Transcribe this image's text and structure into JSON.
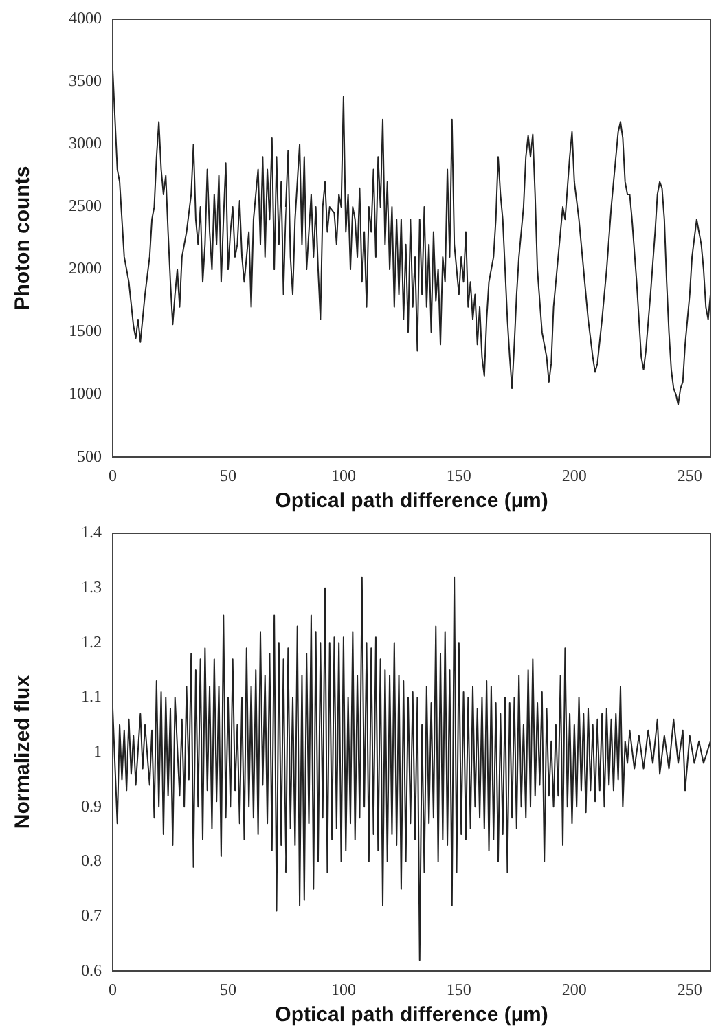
{
  "chart_data": [
    {
      "type": "line",
      "xlabel": "Optical path difference (µm)",
      "ylabel": "Photon counts",
      "xlim": [
        0,
        259
      ],
      "xticks": [
        0,
        50,
        100,
        150,
        200,
        250
      ],
      "ylim": [
        500,
        4000
      ],
      "yticks": [
        500,
        1000,
        1500,
        2000,
        2500,
        3000,
        3500,
        4000
      ],
      "marker": "none",
      "x": [
        0,
        2,
        3,
        4,
        5,
        7,
        9,
        10,
        11,
        12,
        14,
        16,
        17,
        18,
        19,
        20,
        21,
        22,
        23,
        24,
        25,
        26,
        27,
        28,
        29,
        30,
        32,
        34,
        35,
        36,
        37,
        38,
        39,
        40,
        41,
        42,
        43,
        44,
        45,
        46,
        47,
        48,
        49,
        50,
        51,
        52,
        53,
        54,
        55,
        56,
        57,
        59,
        60,
        61,
        63,
        64,
        65,
        66,
        67,
        68,
        69,
        70,
        71,
        72,
        73,
        74,
        75,
        76,
        77,
        78,
        79,
        80,
        81,
        82,
        83,
        84,
        85,
        86,
        87,
        88,
        89,
        90,
        91,
        92,
        93,
        94,
        96,
        97,
        98,
        99,
        100,
        101,
        102,
        103,
        104,
        105,
        106,
        107,
        108,
        109,
        110,
        111,
        112,
        113,
        114,
        115,
        116,
        117,
        118,
        119,
        120,
        121,
        122,
        123,
        124,
        125,
        126,
        127,
        128,
        129,
        130,
        131,
        132,
        133,
        134,
        135,
        136,
        137,
        138,
        139,
        140,
        141,
        142,
        143,
        144,
        145,
        146,
        147,
        148,
        149,
        150,
        151,
        152,
        153,
        154,
        155,
        156,
        157,
        158,
        159,
        160,
        161,
        162,
        163,
        165,
        166,
        167,
        168,
        169,
        170,
        171,
        172,
        173,
        174,
        175,
        176,
        178,
        179,
        180,
        181,
        182,
        183,
        184,
        186,
        188,
        189,
        190,
        191,
        193,
        195,
        196,
        198,
        199,
        200,
        201,
        202,
        204,
        206,
        208,
        209,
        210,
        212,
        214,
        216,
        217,
        218,
        219,
        220,
        221,
        222,
        223,
        224,
        225,
        227,
        228,
        229,
        230,
        231,
        233,
        235,
        236,
        237,
        238,
        239,
        240,
        241,
        242,
        243,
        244,
        245,
        246,
        247,
        248,
        250,
        251,
        252,
        253,
        254,
        255,
        256,
        257,
        258,
        259
      ],
      "series": [
        {
          "color": "#222222",
          "values": [
            3600,
            2800,
            2700,
            2400,
            2100,
            1900,
            1550,
            1450,
            1600,
            1420,
            1800,
            2100,
            2400,
            2500,
            2900,
            3180,
            2800,
            2600,
            2750,
            2300,
            1900,
            1560,
            1800,
            2000,
            1700,
            2100,
            2300,
            2600,
            3000,
            2400,
            2200,
            2500,
            1900,
            2200,
            2800,
            2300,
            2000,
            2600,
            2200,
            2750,
            1900,
            2400,
            2850,
            2000,
            2300,
            2500,
            2100,
            2200,
            2550,
            2100,
            1900,
            2300,
            1700,
            2400,
            2800,
            2200,
            2900,
            2100,
            2800,
            2400,
            3050,
            2000,
            2900,
            2200,
            2700,
            1800,
            2500,
            2950,
            2100,
            1800,
            2400,
            2700,
            3000,
            2200,
            2900,
            2000,
            2300,
            2600,
            2100,
            2500,
            2000,
            1600,
            2500,
            2700,
            2300,
            2500,
            2450,
            2200,
            2600,
            2500,
            3380,
            2300,
            2600,
            2000,
            2500,
            2400,
            2100,
            2650,
            1900,
            2300,
            1700,
            2500,
            2300,
            2800,
            2100,
            2900,
            2500,
            3200,
            2200,
            2700,
            2000,
            2500,
            1700,
            2400,
            1800,
            2400,
            1600,
            2200,
            1500,
            2400,
            1700,
            2100,
            1350,
            2400,
            1800,
            2500,
            1700,
            2200,
            1500,
            2300,
            1750,
            2000,
            1400,
            2100,
            1900,
            2800,
            2100,
            3200,
            2200,
            2000,
            1800,
            2100,
            1900,
            2300,
            1700,
            1900,
            1600,
            1800,
            1400,
            1700,
            1300,
            1150,
            1600,
            1900,
            2100,
            2400,
            2900,
            2600,
            2400,
            2000,
            1600,
            1300,
            1050,
            1400,
            1800,
            2100,
            2500,
            2900,
            3070,
            2900,
            3080,
            2600,
            2000,
            1500,
            1300,
            1100,
            1250,
            1700,
            2100,
            2500,
            2400,
            2900,
            3100,
            2700,
            2550,
            2400,
            2000,
            1600,
            1300,
            1180,
            1250,
            1600,
            2000,
            2500,
            2700,
            2900,
            3100,
            3180,
            3050,
            2700,
            2600,
            2600,
            2400,
            1900,
            1600,
            1300,
            1200,
            1350,
            1800,
            2300,
            2600,
            2700,
            2650,
            2400,
            1900,
            1500,
            1200,
            1050,
            1000,
            920,
            1050,
            1100,
            1400,
            1800,
            2100,
            2250,
            2400,
            2300,
            2200,
            2000,
            1700,
            1600,
            1800
          ]
        }
      ]
    },
    {
      "type": "line",
      "xlabel": "Optical path difference (µm)",
      "ylabel": "Normalized flux",
      "xlim": [
        0,
        259
      ],
      "xticks": [
        0,
        50,
        100,
        150,
        200,
        250
      ],
      "ylim": [
        0.6,
        1.4
      ],
      "yticks": [
        0.6,
        0.7,
        0.8,
        0.9,
        1,
        1.1,
        1.2,
        1.3,
        1.4
      ],
      "marker": "none",
      "x": [
        0,
        2,
        3,
        4,
        5,
        6,
        7,
        8,
        9,
        10,
        12,
        13,
        14,
        16,
        17,
        18,
        19,
        20,
        21,
        22,
        23,
        24,
        25,
        26,
        27,
        29,
        30,
        31,
        32,
        33,
        34,
        35,
        36,
        37,
        38,
        39,
        40,
        41,
        42,
        43,
        44,
        45,
        46,
        47,
        48,
        49,
        50,
        51,
        52,
        53,
        54,
        55,
        56,
        57,
        58,
        59,
        60,
        61,
        62,
        63,
        64,
        65,
        66,
        67,
        68,
        69,
        70,
        71,
        72,
        73,
        74,
        75,
        76,
        77,
        78,
        79,
        80,
        81,
        82,
        83,
        84,
        85,
        86,
        87,
        88,
        89,
        90,
        91,
        92,
        93,
        94,
        95,
        96,
        97,
        98,
        99,
        100,
        101,
        102,
        103,
        104,
        105,
        106,
        107,
        108,
        109,
        110,
        111,
        112,
        113,
        114,
        115,
        116,
        117,
        118,
        119,
        120,
        121,
        122,
        123,
        124,
        125,
        126,
        127,
        128,
        129,
        130,
        131,
        132,
        133,
        134,
        135,
        136,
        137,
        138,
        139,
        140,
        141,
        142,
        143,
        144,
        145,
        146,
        147,
        148,
        149,
        150,
        151,
        152,
        153,
        154,
        155,
        156,
        157,
        158,
        159,
        160,
        161,
        162,
        163,
        164,
        165,
        166,
        167,
        168,
        169,
        170,
        171,
        172,
        173,
        174,
        175,
        176,
        177,
        178,
        179,
        180,
        181,
        182,
        183,
        184,
        185,
        186,
        187,
        188,
        189,
        190,
        191,
        192,
        193,
        194,
        195,
        196,
        197,
        198,
        199,
        200,
        201,
        202,
        203,
        204,
        205,
        206,
        207,
        208,
        209,
        210,
        211,
        212,
        213,
        214,
        215,
        216,
        217,
        218,
        219,
        220,
        221,
        222,
        223,
        224,
        226,
        228,
        230,
        232,
        234,
        236,
        237,
        239,
        241,
        243,
        245,
        247,
        248,
        250,
        252,
        254,
        256,
        259
      ],
      "series": [
        {
          "color": "#222222",
          "values": [
            1.08,
            0.87,
            1.05,
            0.95,
            1.04,
            0.93,
            1.06,
            0.96,
            1.03,
            0.94,
            1.07,
            0.97,
            1.05,
            0.94,
            1.04,
            0.88,
            1.13,
            0.9,
            1.11,
            0.85,
            1.1,
            0.92,
            1.08,
            0.83,
            1.1,
            0.92,
            1.06,
            0.9,
            1.12,
            0.95,
            1.18,
            0.79,
            1.15,
            0.9,
            1.17,
            0.84,
            1.19,
            0.93,
            1.12,
            0.86,
            1.17,
            0.91,
            1.12,
            0.81,
            1.25,
            0.88,
            1.1,
            0.9,
            1.17,
            0.93,
            1.05,
            0.87,
            1.1,
            0.84,
            1.19,
            0.9,
            1.12,
            0.88,
            1.15,
            0.85,
            1.22,
            0.94,
            1.14,
            0.87,
            1.18,
            0.82,
            1.25,
            0.71,
            1.2,
            0.83,
            1.17,
            0.78,
            1.19,
            0.86,
            1.1,
            0.83,
            1.23,
            0.72,
            1.14,
            0.73,
            1.18,
            0.87,
            1.25,
            0.75,
            1.22,
            0.8,
            1.2,
            0.88,
            1.3,
            0.78,
            1.2,
            0.84,
            1.21,
            0.86,
            1.2,
            0.8,
            1.21,
            0.82,
            1.1,
            0.87,
            1.22,
            0.84,
            1.14,
            0.88,
            1.32,
            0.9,
            1.2,
            0.8,
            1.19,
            0.85,
            1.21,
            0.82,
            1.17,
            0.72,
            1.15,
            0.8,
            1.14,
            0.85,
            1.2,
            0.83,
            1.14,
            0.75,
            1.13,
            0.8,
            1.1,
            0.87,
            1.11,
            0.84,
            1.1,
            0.62,
            1.05,
            0.78,
            1.12,
            0.87,
            1.09,
            0.88,
            1.23,
            0.8,
            1.18,
            0.84,
            1.22,
            0.83,
            1.15,
            0.72,
            1.32,
            0.78,
            1.2,
            0.85,
            1.11,
            0.84,
            1.1,
            0.86,
            1.12,
            0.9,
            1.08,
            0.88,
            1.1,
            0.86,
            1.13,
            0.82,
            1.12,
            0.84,
            1.09,
            0.8,
            1.07,
            0.85,
            1.1,
            0.78,
            1.09,
            0.88,
            1.1,
            0.86,
            1.14,
            0.9,
            1.05,
            0.88,
            1.15,
            0.9,
            1.17,
            0.92,
            1.09,
            0.94,
            1.11,
            0.8,
            1.08,
            0.92,
            1.02,
            0.9,
            1.05,
            0.92,
            1.14,
            0.83,
            1.19,
            0.9,
            1.07,
            0.87,
            1.05,
            0.9,
            1.1,
            0.93,
            1.07,
            0.89,
            1.08,
            0.93,
            1.05,
            0.91,
            1.06,
            0.93,
            1.07,
            0.9,
            1.08,
            0.94,
            1.06,
            0.93,
            1.07,
            0.95,
            1.12,
            0.9,
            1.02,
            0.98,
            1.04,
            0.97,
            1.03,
            0.97,
            1.04,
            0.98,
            1.06,
            0.96,
            1.03,
            0.97,
            1.06,
            0.98,
            1.04,
            0.93,
            1.03,
            0.98,
            1.02,
            0.98,
            1.02
          ]
        }
      ]
    }
  ]
}
